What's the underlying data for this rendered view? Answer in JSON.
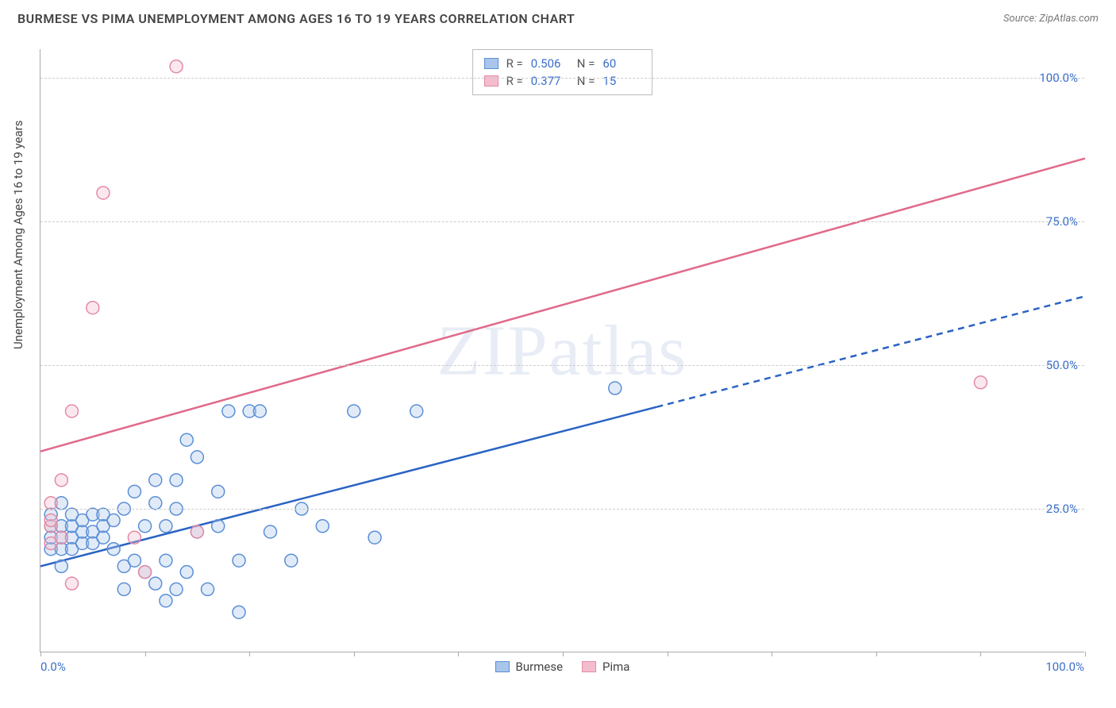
{
  "title": "BURMESE VS PIMA UNEMPLOYMENT AMONG AGES 16 TO 19 YEARS CORRELATION CHART",
  "source_label": "Source: ZipAtlas.com",
  "yaxis_title": "Unemployment Among Ages 16 to 19 years",
  "watermark": "ZIPatlas",
  "chart": {
    "type": "scatter",
    "xlim": [
      0,
      100
    ],
    "ylim": [
      0,
      105
    ],
    "x_tick_label_start": "0.0%",
    "x_tick_label_end": "100.0%",
    "x_ticks": [
      0,
      10,
      20,
      30,
      40,
      50,
      60,
      70,
      80,
      90,
      100
    ],
    "y_gridlines": [
      25,
      50,
      75,
      100
    ],
    "y_tick_labels": [
      "25.0%",
      "50.0%",
      "75.0%",
      "100.0%"
    ],
    "background_color": "#ffffff",
    "grid_color": "#cccccc",
    "axis_color": "#aaaaaa",
    "tick_label_color": "#3b6fc9",
    "marker_radius": 8,
    "marker_stroke_width": 1.5,
    "marker_fill_opacity": 0.35,
    "line_width": 2.5,
    "series": [
      {
        "name": "Burmese",
        "color": "#5b8fd6",
        "fill": "#a9c6ea",
        "line_color": "#2a63c4",
        "R": "0.506",
        "N": "60",
        "trend": {
          "x1": 0,
          "y1": 15,
          "x2": 100,
          "y2": 62,
          "x_solid_max": 59
        },
        "points": [
          [
            1,
            22
          ],
          [
            1,
            18
          ],
          [
            1,
            20
          ],
          [
            1,
            24
          ],
          [
            2,
            18
          ],
          [
            2,
            22
          ],
          [
            2,
            26
          ],
          [
            2,
            15
          ],
          [
            2,
            20
          ],
          [
            3,
            20
          ],
          [
            3,
            22
          ],
          [
            3,
            18
          ],
          [
            3,
            24
          ],
          [
            4,
            19
          ],
          [
            4,
            21
          ],
          [
            4,
            23
          ],
          [
            5,
            21
          ],
          [
            5,
            19
          ],
          [
            5,
            24
          ],
          [
            6,
            24
          ],
          [
            6,
            22
          ],
          [
            6,
            20
          ],
          [
            7,
            18
          ],
          [
            7,
            23
          ],
          [
            8,
            15
          ],
          [
            8,
            25
          ],
          [
            8,
            11
          ],
          [
            9,
            28
          ],
          [
            9,
            16
          ],
          [
            10,
            22
          ],
          [
            10,
            14
          ],
          [
            11,
            26
          ],
          [
            11,
            30
          ],
          [
            11,
            12
          ],
          [
            12,
            9
          ],
          [
            12,
            22
          ],
          [
            12,
            16
          ],
          [
            13,
            30
          ],
          [
            13,
            25
          ],
          [
            13,
            11
          ],
          [
            14,
            37
          ],
          [
            14,
            14
          ],
          [
            15,
            21
          ],
          [
            15,
            34
          ],
          [
            16,
            11
          ],
          [
            17,
            28
          ],
          [
            17,
            22
          ],
          [
            18,
            42
          ],
          [
            19,
            16
          ],
          [
            19,
            7
          ],
          [
            20,
            42
          ],
          [
            21,
            42
          ],
          [
            22,
            21
          ],
          [
            24,
            16
          ],
          [
            25,
            25
          ],
          [
            27,
            22
          ],
          [
            30,
            42
          ],
          [
            32,
            20
          ],
          [
            36,
            42
          ],
          [
            55,
            46
          ]
        ]
      },
      {
        "name": "Pima",
        "color": "#e48aa4",
        "fill": "#f3bdcd",
        "line_color": "#e06a8a",
        "R": "0.377",
        "N": "15",
        "trend": {
          "x1": 0,
          "y1": 35,
          "x2": 100,
          "y2": 86,
          "x_solid_max": 100
        },
        "points": [
          [
            1,
            19
          ],
          [
            1,
            22
          ],
          [
            1,
            23
          ],
          [
            1,
            26
          ],
          [
            2,
            20
          ],
          [
            2,
            30
          ],
          [
            3,
            42
          ],
          [
            3,
            12
          ],
          [
            5,
            60
          ],
          [
            6,
            80
          ],
          [
            9,
            20
          ],
          [
            10,
            14
          ],
          [
            13,
            102
          ],
          [
            15,
            21
          ],
          [
            90,
            47
          ]
        ]
      }
    ]
  },
  "stats_legend": {
    "labels": {
      "R": "R =",
      "N": "N ="
    }
  },
  "bottom_legend": {
    "items": [
      "Burmese",
      "Pima"
    ]
  }
}
